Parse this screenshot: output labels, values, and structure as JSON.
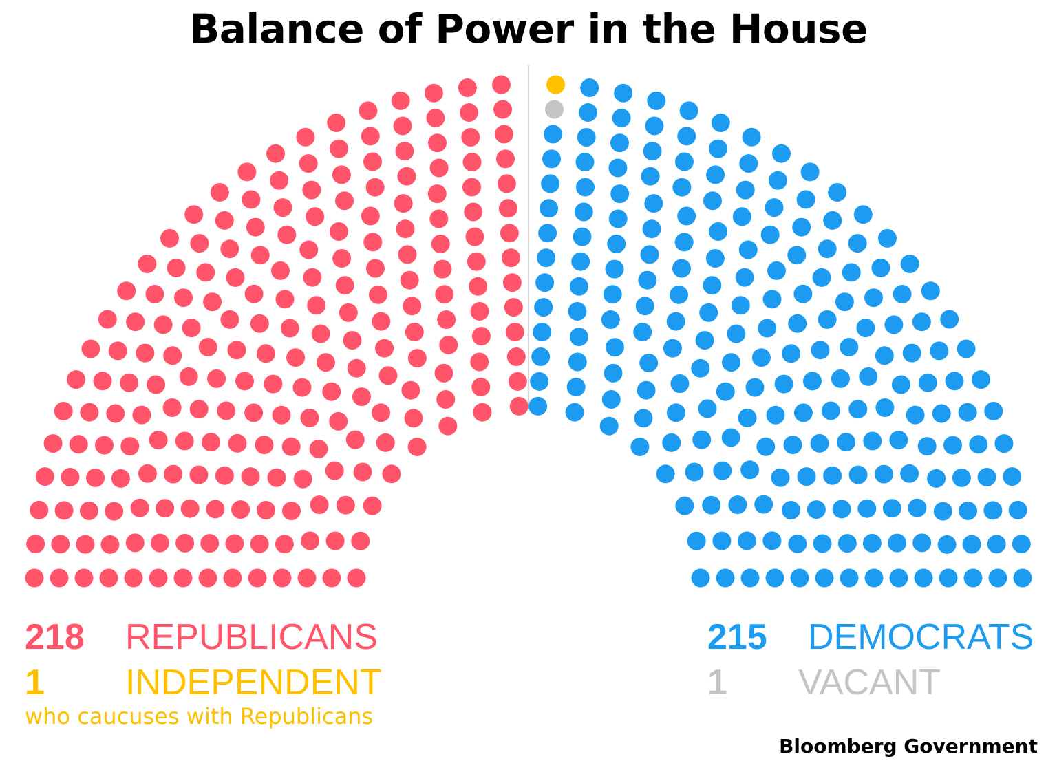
{
  "title": "Balance of Power in the House",
  "chart_data": {
    "type": "parliament",
    "total_seats": 435,
    "series": [
      {
        "name": "REPUBLICANS",
        "value": 218,
        "color": "#ff5469"
      },
      {
        "name": "INDEPENDENT",
        "value": 1,
        "color": "#ffc000"
      },
      {
        "name": "VACANT",
        "value": 1,
        "color": "#c4c4c4"
      },
      {
        "name": "DEMOCRATS",
        "value": 215,
        "color": "#1d9bf0"
      }
    ]
  },
  "legend": {
    "republicans": {
      "count": "218",
      "label": "REPUBLICANS"
    },
    "independent": {
      "count": "1",
      "label": "INDEPENDENT",
      "note": "who caucuses with Republicans"
    },
    "democrats": {
      "count": "215",
      "label": "DEMOCRATS"
    },
    "vacant": {
      "count": "1",
      "label": "VACANT"
    }
  },
  "source": "Bloomberg Government"
}
